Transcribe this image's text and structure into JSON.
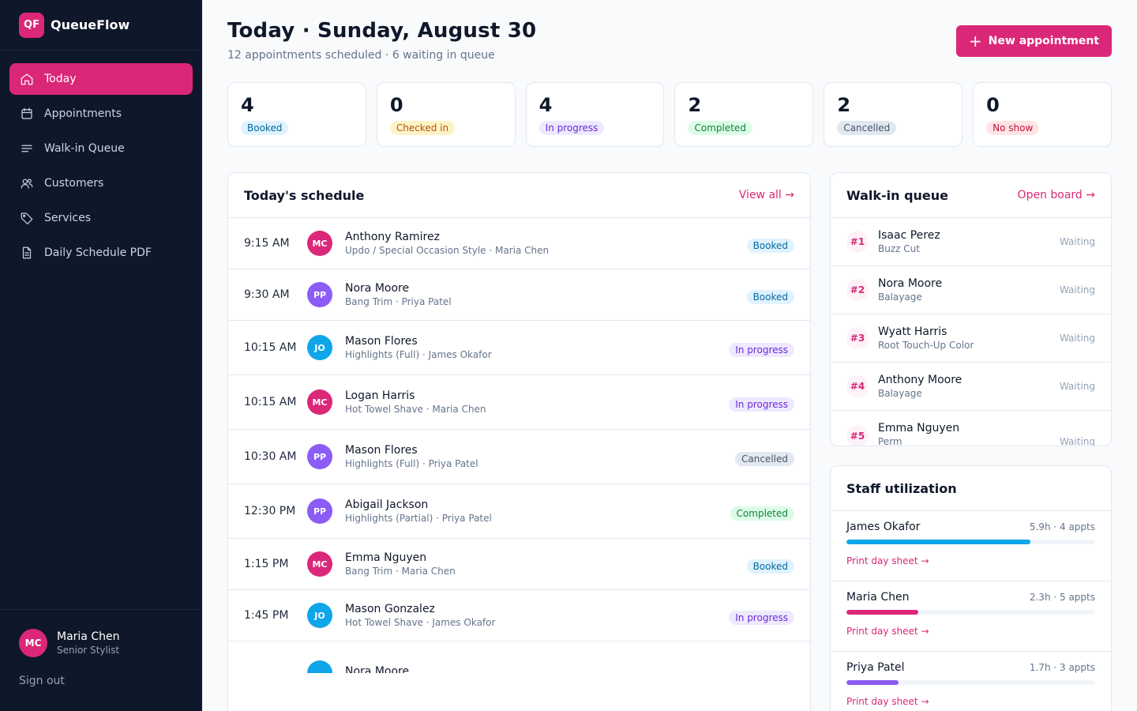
{
  "brand": {
    "logo": "QF",
    "name": "QueueFlow",
    "color": "#db2777"
  },
  "nav": [
    {
      "label": "Today",
      "icon": "home-icon",
      "active": true
    },
    {
      "label": "Appointments",
      "icon": "calendar-icon"
    },
    {
      "label": "Walk-in Queue",
      "icon": "list-icon"
    },
    {
      "label": "Customers",
      "icon": "users-icon"
    },
    {
      "label": "Services",
      "icon": "tag-icon"
    },
    {
      "label": "Daily Schedule PDF",
      "icon": "document-icon"
    }
  ],
  "user": {
    "initials": "MC",
    "name": "Maria Chen",
    "role": "Senior Stylist",
    "signout": "Sign out"
  },
  "header": {
    "title": "Today · Sunday, August 30",
    "subtitle": "12 appointments scheduled · 6 waiting in queue",
    "new_button": "New appointment"
  },
  "stats": [
    {
      "value": "4",
      "label": "Booked",
      "kind": "booked"
    },
    {
      "value": "0",
      "label": "Checked in",
      "kind": "checked"
    },
    {
      "value": "4",
      "label": "In progress",
      "kind": "progress"
    },
    {
      "value": "2",
      "label": "Completed",
      "kind": "completed"
    },
    {
      "value": "2",
      "label": "Cancelled",
      "kind": "cancelled"
    },
    {
      "value": "0",
      "label": "No show",
      "kind": "noshow"
    }
  ],
  "schedule": {
    "title": "Today's schedule",
    "link": "View all →",
    "rows": [
      {
        "time": "9:15 AM",
        "initials": "MC",
        "color": "#db2777",
        "name": "Anthony Ramirez",
        "desc": "Updo / Special Occasion Style · Maria Chen",
        "status": "Booked",
        "kind": "booked"
      },
      {
        "time": "9:30 AM",
        "initials": "PP",
        "color": "#8b5cf6",
        "name": "Nora Moore",
        "desc": "Bang Trim · Priya Patel",
        "status": "Booked",
        "kind": "booked"
      },
      {
        "time": "10:15 AM",
        "initials": "JO",
        "color": "#0ea5e9",
        "name": "Mason Flores",
        "desc": "Highlights (Full) · James Okafor",
        "status": "In progress",
        "kind": "progress"
      },
      {
        "time": "10:15 AM",
        "initials": "MC",
        "color": "#db2777",
        "name": "Logan Harris",
        "desc": "Hot Towel Shave · Maria Chen",
        "status": "In progress",
        "kind": "progress"
      },
      {
        "time": "10:30 AM",
        "initials": "PP",
        "color": "#8b5cf6",
        "name": "Mason Flores",
        "desc": "Highlights (Full) · Priya Patel",
        "status": "Cancelled",
        "kind": "cancelled"
      },
      {
        "time": "12:30 PM",
        "initials": "PP",
        "color": "#8b5cf6",
        "name": "Abigail Jackson",
        "desc": "Highlights (Partial) · Priya Patel",
        "status": "Completed",
        "kind": "completed"
      },
      {
        "time": "1:15 PM",
        "initials": "MC",
        "color": "#db2777",
        "name": "Emma Nguyen",
        "desc": "Bang Trim · Maria Chen",
        "status": "Booked",
        "kind": "booked"
      },
      {
        "time": "1:45 PM",
        "initials": "JO",
        "color": "#0ea5e9",
        "name": "Mason Gonzalez",
        "desc": "Hot Towel Shave · James Okafor",
        "status": "In progress",
        "kind": "progress"
      },
      {
        "time": "",
        "initials": "",
        "color": "#0ea5e9",
        "name": "Nora Moore",
        "desc": "",
        "status": "",
        "kind": "booked"
      }
    ]
  },
  "queue": {
    "title": "Walk-in queue",
    "link": "Open board →",
    "rows": [
      {
        "num": "#1",
        "name": "Isaac Perez",
        "service": "Buzz Cut",
        "status": "Waiting"
      },
      {
        "num": "#2",
        "name": "Nora Moore",
        "service": "Balayage",
        "status": "Waiting"
      },
      {
        "num": "#3",
        "name": "Wyatt Harris",
        "service": "Root Touch-Up Color",
        "status": "Waiting"
      },
      {
        "num": "#4",
        "name": "Anthony Moore",
        "service": "Balayage",
        "status": "Waiting"
      },
      {
        "num": "#5",
        "name": "Emma Nguyen",
        "service": "Perm",
        "status": "Waiting"
      }
    ]
  },
  "staff": {
    "title": "Staff utilization",
    "rows": [
      {
        "name": "James Okafor",
        "meta": "5.9h · 4 appts",
        "utilization": 0.74,
        "color": "#0ea5e9",
        "link": "Print day sheet →"
      },
      {
        "name": "Maria Chen",
        "meta": "2.3h · 5 appts",
        "utilization": 0.29,
        "color": "#db2777",
        "link": "Print day sheet →"
      },
      {
        "name": "Priya Patel",
        "meta": "1.7h · 3 appts",
        "utilization": 0.21,
        "color": "#8b5cf6",
        "link": "Print day sheet →"
      }
    ]
  }
}
